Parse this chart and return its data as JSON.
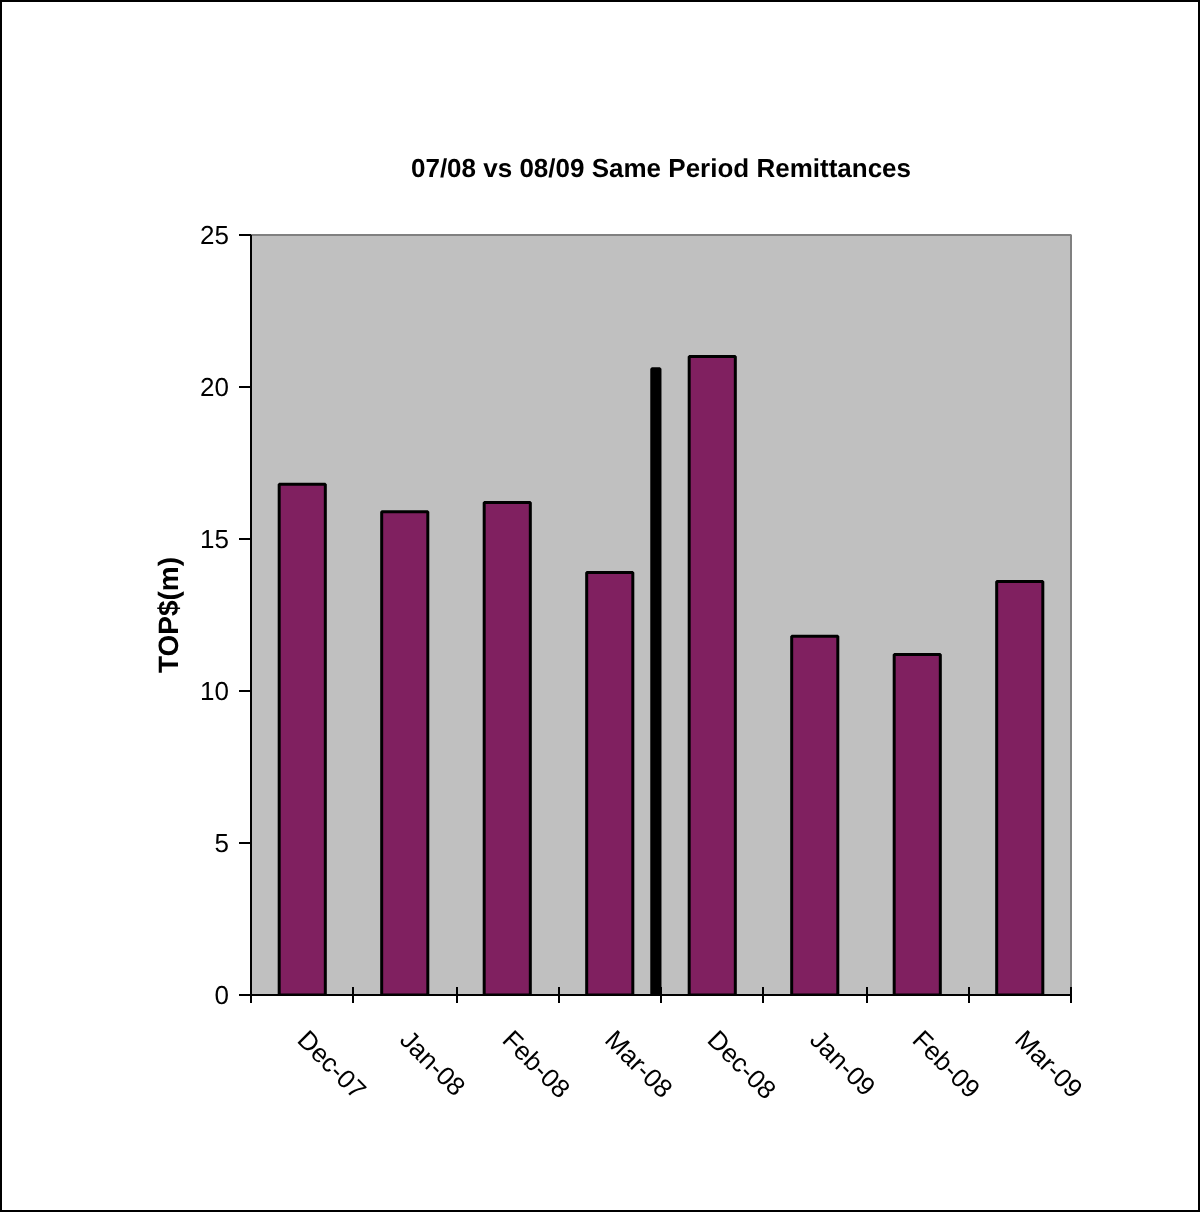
{
  "chart_data": {
    "type": "bar",
    "title": "07/08 vs 08/09 Same Period Remittances",
    "ylabel": "TOP$(m)",
    "categories": [
      "Dec-07",
      "Jan-08",
      "Feb-08",
      "Mar-08",
      "Dec-08",
      "Jan-09",
      "Feb-09",
      "Mar-09"
    ],
    "series": [
      {
        "color": "#802060",
        "values": [
          16.8,
          15.9,
          16.2,
          13.9,
          21.0,
          11.8,
          11.2,
          13.6
        ]
      },
      {
        "color": "#000000",
        "values": [
          null,
          null,
          null,
          20.6,
          null,
          null,
          null,
          null
        ]
      }
    ],
    "ylim": [
      0,
      25
    ],
    "yticks": [
      0,
      5,
      10,
      15,
      20,
      25
    ],
    "grid": false
  }
}
